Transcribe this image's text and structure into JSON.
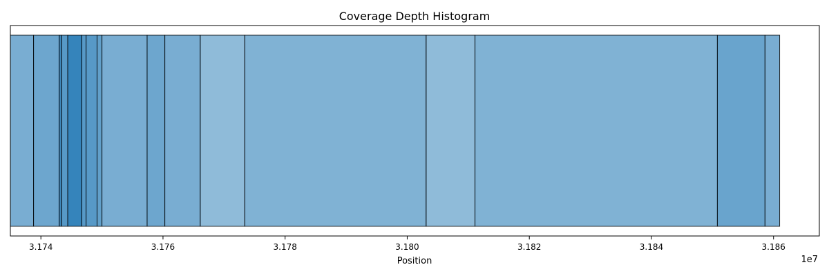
{
  "chart_data": {
    "type": "bar",
    "title": "Coverage Depth Histogram",
    "xlabel": "Position",
    "ylabel": "",
    "x_offset_label": "1e7",
    "xlim": [
      31735000,
      31867500
    ],
    "x_ticks": [
      31740000,
      31760000,
      31780000,
      31800000,
      31820000,
      31840000,
      31860000
    ],
    "x_tick_labels": [
      "3.174",
      "3.176",
      "3.178",
      "3.180",
      "3.182",
      "3.184",
      "3.186"
    ],
    "y_ticks_shown": false,
    "grid": false,
    "legend": "none",
    "colors": {
      "bar_base": "#1f77b4",
      "edge": "#000000",
      "background": "#ffffff"
    },
    "intervals": [
      {
        "start": 31735000,
        "end": 31738800,
        "alpha": 0.6
      },
      {
        "start": 31738800,
        "end": 31743000,
        "alpha": 0.65
      },
      {
        "start": 31743000,
        "end": 31743400,
        "alpha": 0.85
      },
      {
        "start": 31743400,
        "end": 31744400,
        "alpha": 0.75
      },
      {
        "start": 31744400,
        "end": 31746700,
        "alpha": 0.9
      },
      {
        "start": 31746700,
        "end": 31747400,
        "alpha": 0.75
      },
      {
        "start": 31747400,
        "end": 31749200,
        "alpha": 0.75
      },
      {
        "start": 31749200,
        "end": 31750000,
        "alpha": 0.7
      },
      {
        "start": 31750000,
        "end": 31757400,
        "alpha": 0.6
      },
      {
        "start": 31757400,
        "end": 31760300,
        "alpha": 0.65
      },
      {
        "start": 31760300,
        "end": 31766100,
        "alpha": 0.6
      },
      {
        "start": 31766100,
        "end": 31773400,
        "alpha": 0.5
      },
      {
        "start": 31773400,
        "end": 31803100,
        "alpha": 0.57
      },
      {
        "start": 31803100,
        "end": 31811100,
        "alpha": 0.5
      },
      {
        "start": 31811100,
        "end": 31850800,
        "alpha": 0.57
      },
      {
        "start": 31850800,
        "end": 31858600,
        "alpha": 0.67
      },
      {
        "start": 31858600,
        "end": 31861000,
        "alpha": 0.6
      }
    ]
  }
}
